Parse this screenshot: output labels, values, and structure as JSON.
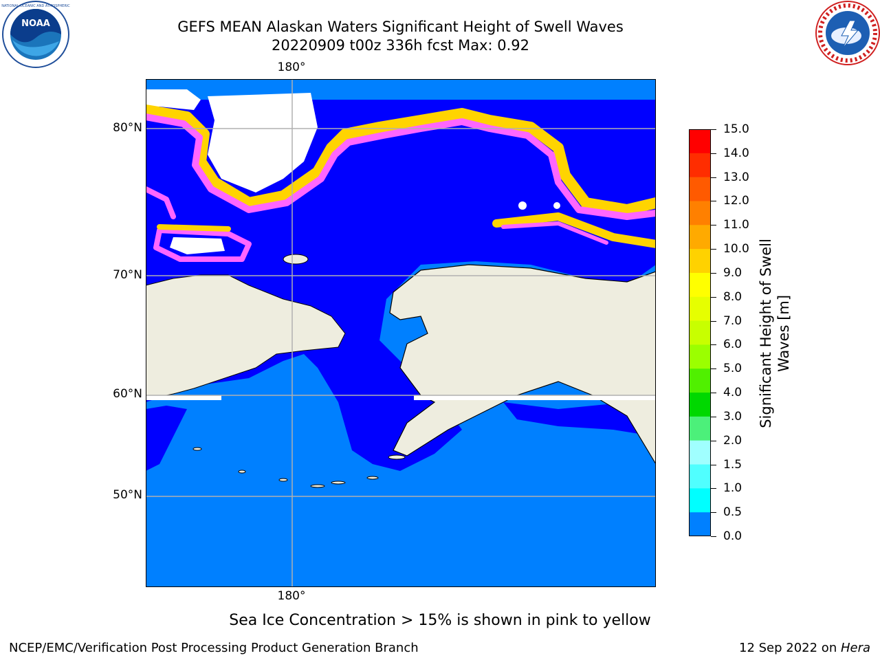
{
  "title": {
    "line1": "GEFS MEAN Alaskan Waters Significant Height of Swell Waves",
    "line2": "20220909 t00z 336h fcst   Max: 0.92"
  },
  "logos": {
    "left": "NOAA",
    "right": "NATIONAL WEATHER SERVICE"
  },
  "map": {
    "lon_labels": {
      "top": "180°",
      "bottom": "180°"
    },
    "lat_labels": [
      "80°N",
      "70°N",
      "60°N",
      "50°N"
    ],
    "colors": {
      "land": "#eeeddf",
      "ocean_low": "#0000ff",
      "ocean_mid": "#0080ff",
      "no_data": "#ffffff",
      "grid": "#b0b0b0"
    }
  },
  "colorbar": {
    "ticks": [
      "15.0",
      "14.0",
      "13.0",
      "12.0",
      "11.0",
      "10.0",
      "9.0",
      "8.0",
      "7.0",
      "6.0",
      "5.0",
      "4.0",
      "3.0",
      "2.0",
      "1.5",
      "1.0",
      "0.5",
      "0.0"
    ],
    "colors": [
      "#ff0000",
      "#ff2d00",
      "#ff5a00",
      "#ff8000",
      "#ffaa00",
      "#ffd200",
      "#ffff00",
      "#e6ff00",
      "#c8ff00",
      "#9bff00",
      "#50f000",
      "#00d800",
      "#4cf07a",
      "#a0ffff",
      "#50ffff",
      "#00ffff",
      "#0080ff",
      "#0000ff"
    ],
    "label_line1": "Significant Height of Swell",
    "label_line2": "Waves [m]"
  },
  "note": "Sea Ice Concentration > 15% is shown in pink to yellow",
  "footer": {
    "left": "NCEP/EMC/Verification Post Processing Product Generation Branch",
    "date": "12 Sep 2022 on ",
    "machine": "Hera"
  }
}
